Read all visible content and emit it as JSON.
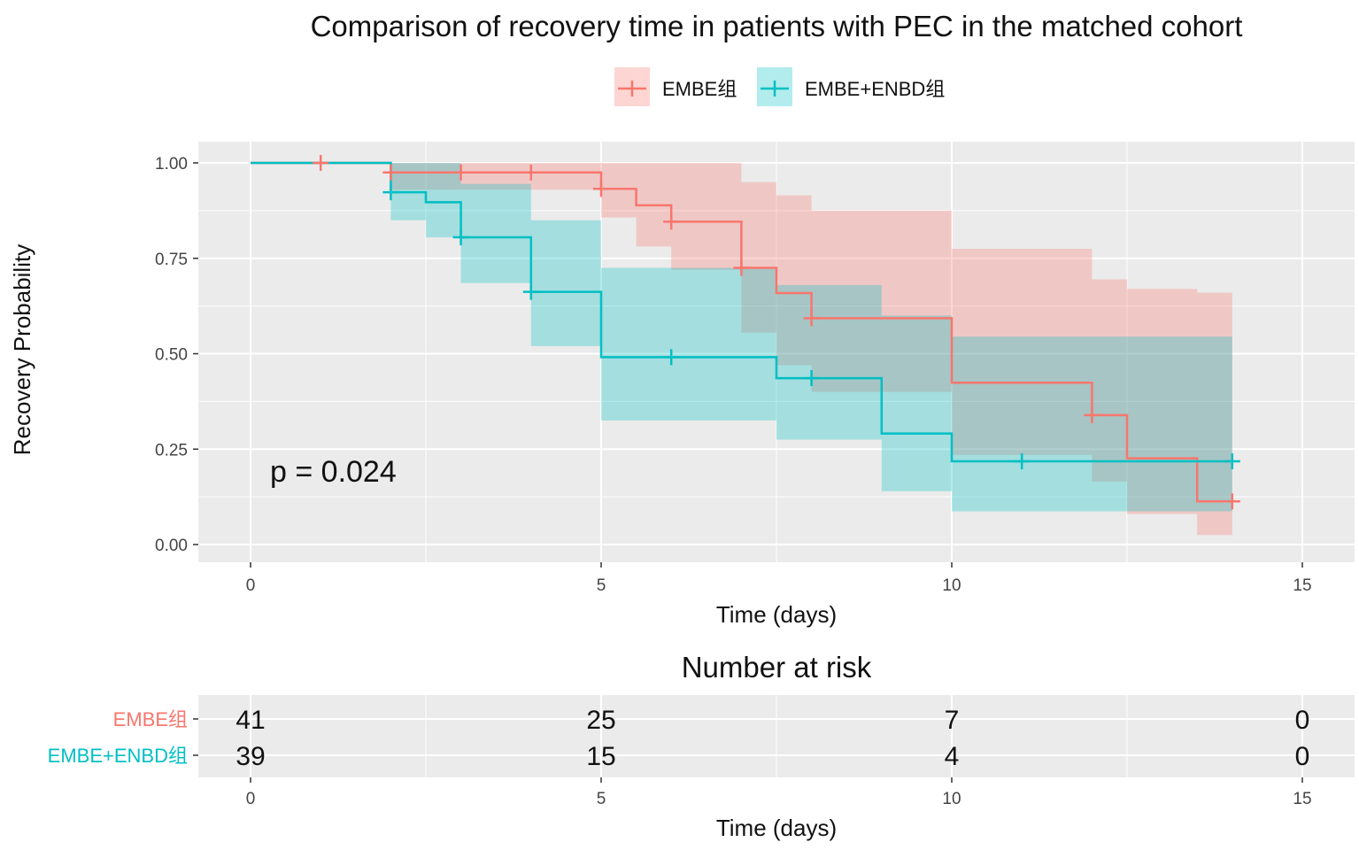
{
  "chart_data": [
    {
      "type": "line",
      "subtype": "kaplan-meier",
      "title": "Comparison of recovery time in patients with PEC in the matched cohort",
      "xlabel": "Time (days)",
      "ylabel": "Recovery Probability",
      "xlim": [
        0,
        15
      ],
      "ylim": [
        0,
        1
      ],
      "xticks": [
        0,
        5,
        10,
        15
      ],
      "yticks": [
        0,
        0.25,
        0.5,
        0.75,
        1.0
      ],
      "ytick_labels": [
        "0.00",
        "0.25",
        "0.50",
        "0.75",
        "1.00"
      ],
      "legend_position": "top",
      "annotation": "p = 0.024",
      "series": [
        {
          "name": "EMBE组",
          "color": "#F8766D",
          "steps": [
            [
              0,
              1.0
            ],
            [
              2,
              0.975
            ],
            [
              5,
              0.932
            ],
            [
              5.5,
              0.889
            ],
            [
              6,
              0.846
            ],
            [
              7,
              0.725
            ],
            [
              7.5,
              0.659
            ],
            [
              8,
              0.593
            ],
            [
              10,
              0.424
            ],
            [
              12,
              0.339
            ],
            [
              12.5,
              0.226
            ],
            [
              13.5,
              0.113
            ],
            [
              14,
              0.113
            ]
          ],
          "lower": [
            [
              0,
              1.0
            ],
            [
              2,
              0.93
            ],
            [
              5,
              0.857
            ],
            [
              5.5,
              0.781
            ],
            [
              6,
              0.72
            ],
            [
              7,
              0.555
            ],
            [
              7.5,
              0.47
            ],
            [
              8,
              0.4
            ],
            [
              10,
              0.235
            ],
            [
              12,
              0.165
            ],
            [
              12.5,
              0.08
            ],
            [
              13.5,
              0.025
            ],
            [
              14,
              0.025
            ]
          ],
          "upper": [
            [
              0,
              1.0
            ],
            [
              2,
              1.0
            ],
            [
              5,
              1.0
            ],
            [
              5.5,
              1.0
            ],
            [
              6,
              1.0
            ],
            [
              7,
              0.95
            ],
            [
              7.5,
              0.915
            ],
            [
              8,
              0.875
            ],
            [
              10,
              0.775
            ],
            [
              12,
              0.695
            ],
            [
              12.5,
              0.67
            ],
            [
              13.5,
              0.66
            ],
            [
              14,
              0.66
            ]
          ],
          "censored": [
            [
              1,
              1.0
            ],
            [
              2,
              0.975
            ],
            [
              3,
              0.975
            ],
            [
              4,
              0.975
            ],
            [
              5,
              0.932
            ],
            [
              6,
              0.846
            ],
            [
              7,
              0.725
            ],
            [
              8,
              0.593
            ],
            [
              12,
              0.339
            ],
            [
              14,
              0.113
            ]
          ]
        },
        {
          "name": "EMBE+ENBD组",
          "color": "#00BFC4",
          "steps": [
            [
              0,
              1.0
            ],
            [
              2,
              0.923
            ],
            [
              2.5,
              0.897
            ],
            [
              3,
              0.805
            ],
            [
              4,
              0.662
            ],
            [
              5,
              0.491
            ],
            [
              7.5,
              0.436
            ],
            [
              9,
              0.291
            ],
            [
              10,
              0.218
            ],
            [
              14,
              0.218
            ]
          ],
          "lower": [
            [
              0,
              1.0
            ],
            [
              2,
              0.85
            ],
            [
              2.5,
              0.805
            ],
            [
              3,
              0.685
            ],
            [
              4,
              0.52
            ],
            [
              5,
              0.325
            ],
            [
              7.5,
              0.275
            ],
            [
              9,
              0.14
            ],
            [
              10,
              0.087
            ],
            [
              14,
              0.087
            ]
          ],
          "upper": [
            [
              0,
              1.0
            ],
            [
              2,
              1.0
            ],
            [
              2.5,
              1.0
            ],
            [
              3,
              0.945
            ],
            [
              4,
              0.85
            ],
            [
              5,
              0.725
            ],
            [
              7.5,
              0.68
            ],
            [
              9,
              0.6
            ],
            [
              10,
              0.545
            ],
            [
              14,
              0.545
            ]
          ],
          "censored": [
            [
              2,
              0.923
            ],
            [
              3,
              0.805
            ],
            [
              4,
              0.662
            ],
            [
              6,
              0.491
            ],
            [
              8,
              0.436
            ],
            [
              11,
              0.218
            ],
            [
              14,
              0.218
            ]
          ]
        }
      ]
    },
    {
      "type": "table",
      "title": "Number at risk",
      "xlabel": "Time (days)",
      "xlim": [
        0,
        15
      ],
      "xticks": [
        0,
        5,
        10,
        15
      ],
      "times": [
        0,
        5,
        10,
        15
      ],
      "rows": [
        {
          "name": "EMBE组",
          "color": "#F8766D",
          "values": [
            41,
            25,
            7,
            0
          ]
        },
        {
          "name": "EMBE+ENBD组",
          "color": "#00BFC4",
          "values": [
            39,
            15,
            4,
            0
          ]
        }
      ]
    }
  ]
}
